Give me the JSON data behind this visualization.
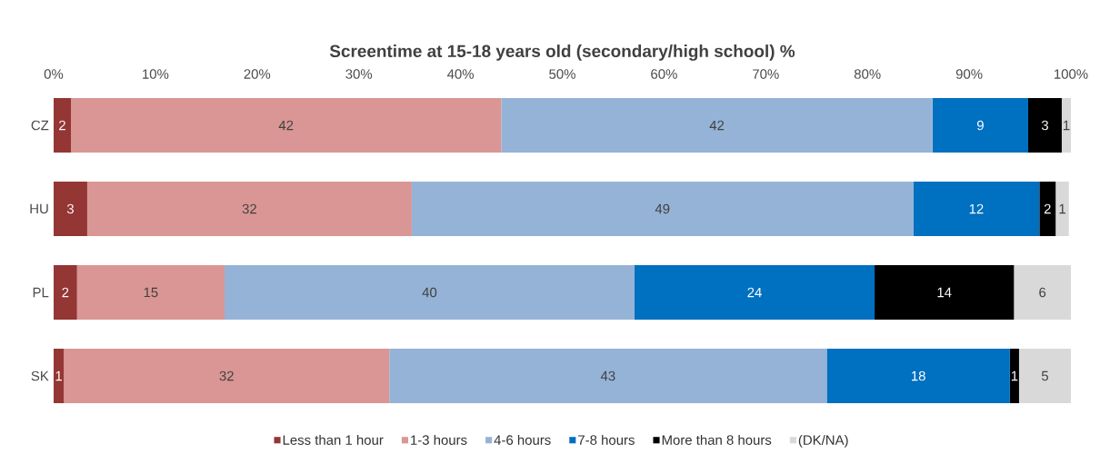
{
  "chart_data": {
    "type": "bar",
    "orientation": "horizontal",
    "stacked": true,
    "title": "Screentime at 15-18 years old (secondary/high school) %",
    "categories": [
      "CZ",
      "HU",
      "PL",
      "SK"
    ],
    "series": [
      {
        "name": "Less than 1 hour",
        "color": "#943634",
        "values": [
          1.7,
          3.3,
          2.3,
          1.0
        ],
        "value_labels": [
          "2",
          "3",
          "2",
          "1"
        ]
      },
      {
        "name": "1-3 hours",
        "color": "#d99694",
        "values": [
          42.3,
          31.9,
          14.5,
          32.0
        ],
        "value_labels": [
          "42",
          "32",
          "15",
          "32"
        ]
      },
      {
        "name": "4-6 hours",
        "color": "#95b3d7",
        "values": [
          42.4,
          49.3,
          40.3,
          43.0
        ],
        "value_labels": [
          "42",
          "49",
          "40",
          "43"
        ]
      },
      {
        "name": "7-8 hours",
        "color": "#0070c0",
        "values": [
          9.4,
          12.4,
          23.6,
          18.0
        ],
        "value_labels": [
          "9",
          "12",
          "24",
          "18"
        ]
      },
      {
        "name": "More than 8 hours",
        "color": "#000000",
        "values": [
          3.3,
          1.6,
          13.7,
          0.9
        ],
        "value_labels": [
          "3",
          "2",
          "14",
          "1"
        ]
      },
      {
        "name": "(DK/NA)",
        "color": "#d9d9d9",
        "values": [
          0.9,
          1.3,
          5.6,
          5.1
        ],
        "value_labels": [
          "1",
          "1",
          "6",
          "5"
        ]
      }
    ],
    "xlim": [
      0,
      100
    ],
    "xticks": [
      {
        "value": 0,
        "label": "0%"
      },
      {
        "value": 10,
        "label": "10%"
      },
      {
        "value": 20,
        "label": "20%"
      },
      {
        "value": 30,
        "label": "30%"
      },
      {
        "value": 40,
        "label": "40%"
      },
      {
        "value": 50,
        "label": "50%"
      },
      {
        "value": 60,
        "label": "60%"
      },
      {
        "value": 70,
        "label": "70%"
      },
      {
        "value": 80,
        "label": "80%"
      },
      {
        "value": 90,
        "label": "90%"
      },
      {
        "value": 100,
        "label": "100%"
      }
    ],
    "legend": "bottom"
  }
}
